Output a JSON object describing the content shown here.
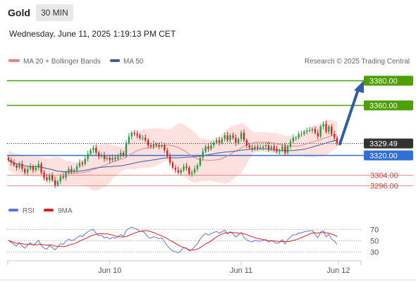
{
  "header": {
    "symbol": "Gold",
    "timeframe": "30 MIN",
    "timestamp": "Wednesday, June 11, 2025 1:19:13 PM CET"
  },
  "legend": {
    "ma20_label": "MA 20 + Bollinger Bands",
    "ma50_label": "MA 50",
    "credit": "Research © 2025 Trading Central",
    "ma20_color": "#f08080",
    "ma50_color": "#3a5fa8"
  },
  "chart_data": [
    {
      "type": "candlestick",
      "ylim": [
        3285,
        3388
      ],
      "x_ticks": [
        "Jun 10",
        "Jun 11",
        "Jun 12"
      ],
      "levels": [
        {
          "label": "3380.00",
          "value": 3380.0,
          "color": "#4ca000",
          "kind": "resistance"
        },
        {
          "label": "3360.00",
          "value": 3360.0,
          "color": "#4ca000",
          "kind": "resistance"
        },
        {
          "label": "3329.49",
          "value": 3329.49,
          "color": "#333333",
          "kind": "last price"
        },
        {
          "label": "3320.00",
          "value": 3320.0,
          "color": "#2f6fd8",
          "kind": "pivot"
        },
        {
          "label": "3304.00",
          "value": 3304.0,
          "color": "#e06060",
          "kind": "support"
        },
        {
          "label": "3296.00",
          "value": 3296.0,
          "color": "#e06060",
          "kind": "support"
        }
      ],
      "close": [
        3316,
        3314,
        3312,
        3310,
        3313,
        3309,
        3306,
        3309,
        3311,
        3308,
        3310,
        3313,
        3306,
        3302,
        3300,
        3304,
        3300,
        3296,
        3299,
        3303,
        3302,
        3306,
        3309,
        3307,
        3308,
        3311,
        3314,
        3313,
        3317,
        3321,
        3324,
        3326,
        3322,
        3319,
        3320,
        3317,
        3318,
        3316,
        3318,
        3317,
        3319,
        3322,
        3320,
        3330,
        3335,
        3338,
        3337,
        3336,
        3334,
        3334,
        3332,
        3328,
        3327,
        3329,
        3328,
        3327,
        3328,
        3324,
        3319,
        3314,
        3310,
        3308,
        3306,
        3308,
        3311,
        3310,
        3305,
        3306,
        3309,
        3312,
        3318,
        3323,
        3327,
        3325,
        3328,
        3330,
        3332,
        3330,
        3333,
        3336,
        3332,
        3336,
        3334,
        3330,
        3333,
        3338,
        3332,
        3328,
        3326,
        3325,
        3327,
        3326,
        3326,
        3327,
        3328,
        3325,
        3327,
        3325,
        3323,
        3324,
        3327,
        3322,
        3327,
        3331,
        3334,
        3334,
        3337,
        3337,
        3339,
        3340,
        3340,
        3341,
        3338,
        3335,
        3343,
        3345,
        3339,
        3343,
        3337,
        3334,
        3329
      ],
      "rsi": {
        "label": "RSI",
        "color": "#5577dd",
        "ticks": [
          70,
          50,
          30
        ],
        "ylim": [
          22,
          78
        ]
      },
      "ma9": {
        "label": "9MA",
        "color": "#e02020"
      },
      "arrow": {
        "from_value": 3329,
        "to_value": 3380,
        "color": "#2f5ea8"
      }
    }
  ]
}
